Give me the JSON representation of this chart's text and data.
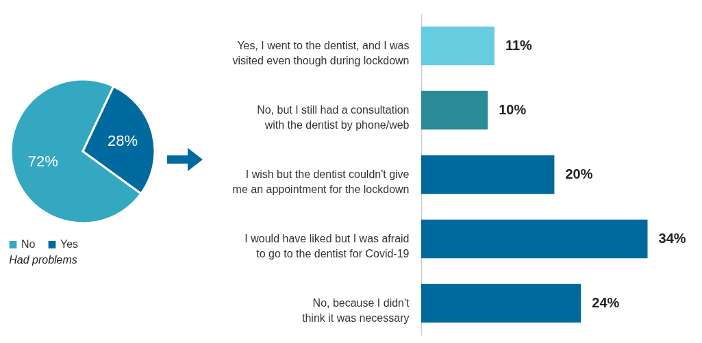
{
  "chart_data": [
    {
      "type": "pie",
      "categories": [
        "No",
        "Yes"
      ],
      "values": [
        72,
        28
      ],
      "colors": [
        "#33a8c0",
        "#006a9e"
      ],
      "value_labels": [
        "72%",
        "28%"
      ],
      "legend": "bottom",
      "legend_title": "Had problems"
    },
    {
      "type": "bar",
      "orientation": "horizontal",
      "categories": [
        "Yes, I went to the dentist, and I was visited even though during lockdown",
        "No, but I still had a consultation with the dentist by phone/web",
        "I wish but the dentist couldn't give me an appointment for the lockdown",
        "I would have liked but I was afraid to go to the dentist for Covid-19",
        "No, because I didn't think it was necessary"
      ],
      "values": [
        11,
        10,
        20,
        34,
        24
      ],
      "colors": [
        "#66cce0",
        "#2a8a96",
        "#006a9e",
        "#006a9e",
        "#006a9e"
      ],
      "value_labels": [
        "11%",
        "10%",
        "20%",
        "34%",
        "24%"
      ]
    }
  ]
}
